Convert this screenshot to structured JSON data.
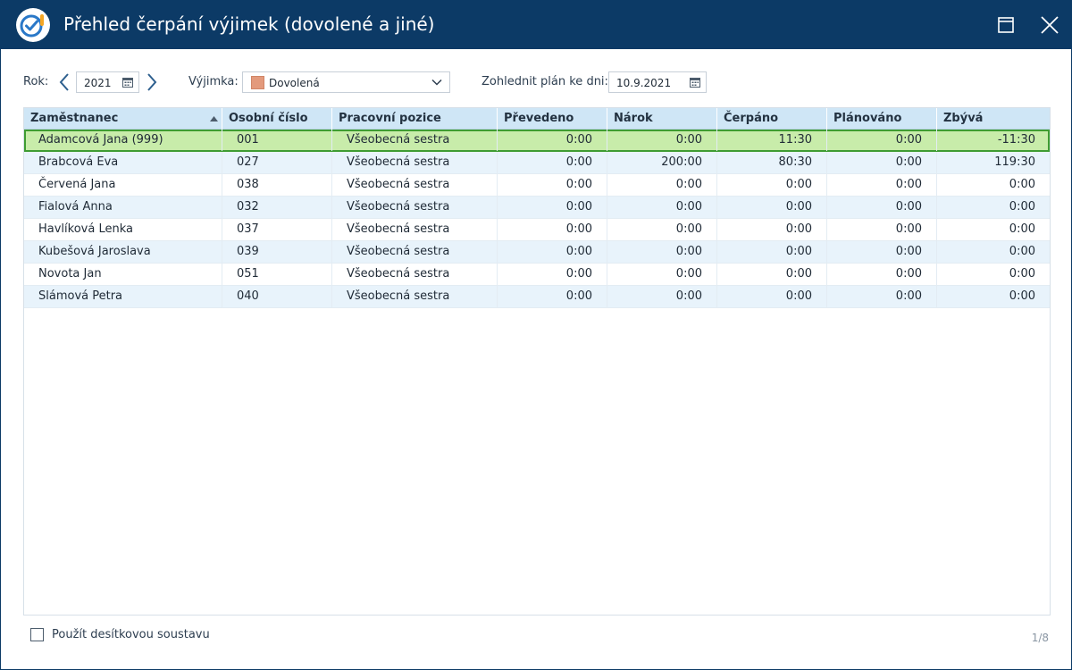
{
  "window": {
    "title": "Přehled čerpání výjimek (dovolené a jiné)",
    "maximize_icon": "maximize-icon",
    "close_icon": "close-icon"
  },
  "filters": {
    "year_label": "Rok:",
    "year_value": "2021",
    "exception_label": "Výjimka:",
    "exception_value": "Dovolená",
    "exception_color": "#e39a7c",
    "plan_label": "Zohlednit plán ke dni:",
    "plan_date": "10.9.2021"
  },
  "table": {
    "columns": [
      "Zaměstnanec",
      "Osobní číslo",
      "Pracovní pozice",
      "Převedeno",
      "Nárok",
      "Čerpáno",
      "Plánováno",
      "Zbývá"
    ],
    "sort": {
      "column": "Zaměstnanec",
      "direction": "ascending"
    },
    "selected_row": 0,
    "rows": [
      {
        "name": "Adamcová Jana (999)",
        "id": "001",
        "position": "Všeobecná sestra",
        "prevedeno": "0:00",
        "narok": "0:00",
        "cerpano": "11:30",
        "planovano": "0:00",
        "zbyva": "-11:30"
      },
      {
        "name": "Brabcová Eva",
        "id": "027",
        "position": "Všeobecná sestra",
        "prevedeno": "0:00",
        "narok": "200:00",
        "cerpano": "80:30",
        "planovano": "0:00",
        "zbyva": "119:30"
      },
      {
        "name": "Červená Jana",
        "id": "038",
        "position": "Všeobecná sestra",
        "prevedeno": "0:00",
        "narok": "0:00",
        "cerpano": "0:00",
        "planovano": "0:00",
        "zbyva": "0:00"
      },
      {
        "name": "Fialová Anna",
        "id": "032",
        "position": "Všeobecná sestra",
        "prevedeno": "0:00",
        "narok": "0:00",
        "cerpano": "0:00",
        "planovano": "0:00",
        "zbyva": "0:00"
      },
      {
        "name": "Havlíková Lenka",
        "id": "037",
        "position": "Všeobecná sestra",
        "prevedeno": "0:00",
        "narok": "0:00",
        "cerpano": "0:00",
        "planovano": "0:00",
        "zbyva": "0:00"
      },
      {
        "name": "Kubešová Jaroslava",
        "id": "039",
        "position": "Všeobecná sestra",
        "prevedeno": "0:00",
        "narok": "0:00",
        "cerpano": "0:00",
        "planovano": "0:00",
        "zbyva": "0:00"
      },
      {
        "name": "Novota Jan",
        "id": "051",
        "position": "Všeobecná sestra",
        "prevedeno": "0:00",
        "narok": "0:00",
        "cerpano": "0:00",
        "planovano": "0:00",
        "zbyva": "0:00"
      },
      {
        "name": "Slámová Petra",
        "id": "040",
        "position": "Všeobecná sestra",
        "prevedeno": "0:00",
        "narok": "0:00",
        "cerpano": "0:00",
        "planovano": "0:00",
        "zbyva": "0:00"
      }
    ]
  },
  "footer": {
    "decimal_checkbox_label": "Použít desítkovou soustavu",
    "decimal_checked": false,
    "pager": "1/8"
  }
}
